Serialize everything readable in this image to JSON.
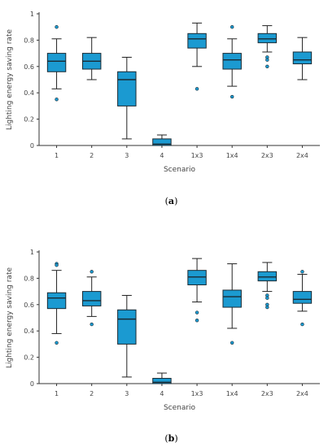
{
  "chart_data": [
    {
      "type": "boxplot",
      "caption": "(a)",
      "caption_letter": "a",
      "xlabel": "Scenario",
      "ylabel": "Lighting energy saving rate",
      "ylim": [
        0,
        1
      ],
      "yticks": [
        "0",
        "0.2",
        "0.4",
        "0.6",
        "0.8",
        "1"
      ],
      "grid": false,
      "color": "#1b9ad1",
      "categories": [
        "1",
        "2",
        "3",
        "4",
        "1x3",
        "1x4",
        "2x3",
        "2x4"
      ],
      "boxes": [
        {
          "min": 0.43,
          "q1": 0.56,
          "median": 0.64,
          "q3": 0.7,
          "max": 0.81,
          "outliers": [
            0.9,
            0.35
          ]
        },
        {
          "min": 0.5,
          "q1": 0.58,
          "median": 0.64,
          "q3": 0.7,
          "max": 0.82,
          "outliers": []
        },
        {
          "min": 0.05,
          "q1": 0.3,
          "median": 0.5,
          "q3": 0.56,
          "max": 0.67,
          "outliers": []
        },
        {
          "min": 0.0,
          "q1": 0.0,
          "median": 0.01,
          "q3": 0.05,
          "max": 0.08,
          "outliers": []
        },
        {
          "min": 0.6,
          "q1": 0.74,
          "median": 0.81,
          "q3": 0.85,
          "max": 0.93,
          "outliers": [
            0.43
          ]
        },
        {
          "min": 0.45,
          "q1": 0.58,
          "median": 0.65,
          "q3": 0.7,
          "max": 0.81,
          "outliers": [
            0.9,
            0.37
          ]
        },
        {
          "min": 0.71,
          "q1": 0.78,
          "median": 0.81,
          "q3": 0.85,
          "max": 0.91,
          "outliers": [
            0.67,
            0.65,
            0.6
          ]
        },
        {
          "min": 0.5,
          "q1": 0.62,
          "median": 0.65,
          "q3": 0.71,
          "max": 0.82,
          "outliers": []
        }
      ]
    },
    {
      "type": "boxplot",
      "caption": "(b)",
      "caption_letter": "b",
      "xlabel": "Scenario",
      "ylabel": "Lighting energy saving rate",
      "ylim": [
        0,
        1
      ],
      "yticks": [
        "0",
        "0.2",
        "0.4",
        "0.6",
        "0.8",
        "1"
      ],
      "grid": false,
      "color": "#1b9ad1",
      "categories": [
        "1",
        "2",
        "3",
        "4",
        "1x3",
        "1x4",
        "2x3",
        "2x4"
      ],
      "boxes": [
        {
          "min": 0.38,
          "q1": 0.57,
          "median": 0.65,
          "q3": 0.69,
          "max": 0.86,
          "outliers": [
            0.91,
            0.9,
            0.31
          ]
        },
        {
          "min": 0.51,
          "q1": 0.59,
          "median": 0.63,
          "q3": 0.7,
          "max": 0.81,
          "outliers": [
            0.85,
            0.45
          ]
        },
        {
          "min": 0.05,
          "q1": 0.3,
          "median": 0.49,
          "q3": 0.56,
          "max": 0.67,
          "outliers": []
        },
        {
          "min": 0.0,
          "q1": 0.0,
          "median": 0.01,
          "q3": 0.04,
          "max": 0.08,
          "outliers": []
        },
        {
          "min": 0.62,
          "q1": 0.75,
          "median": 0.81,
          "q3": 0.86,
          "max": 0.95,
          "outliers": [
            0.54,
            0.48
          ]
        },
        {
          "min": 0.42,
          "q1": 0.58,
          "median": 0.66,
          "q3": 0.71,
          "max": 0.91,
          "outliers": [
            0.31
          ]
        },
        {
          "min": 0.7,
          "q1": 0.78,
          "median": 0.81,
          "q3": 0.85,
          "max": 0.92,
          "outliers": [
            0.67,
            0.65,
            0.6,
            0.58
          ]
        },
        {
          "min": 0.55,
          "q1": 0.61,
          "median": 0.64,
          "q3": 0.7,
          "max": 0.83,
          "outliers": [
            0.85,
            0.45
          ]
        }
      ]
    }
  ]
}
